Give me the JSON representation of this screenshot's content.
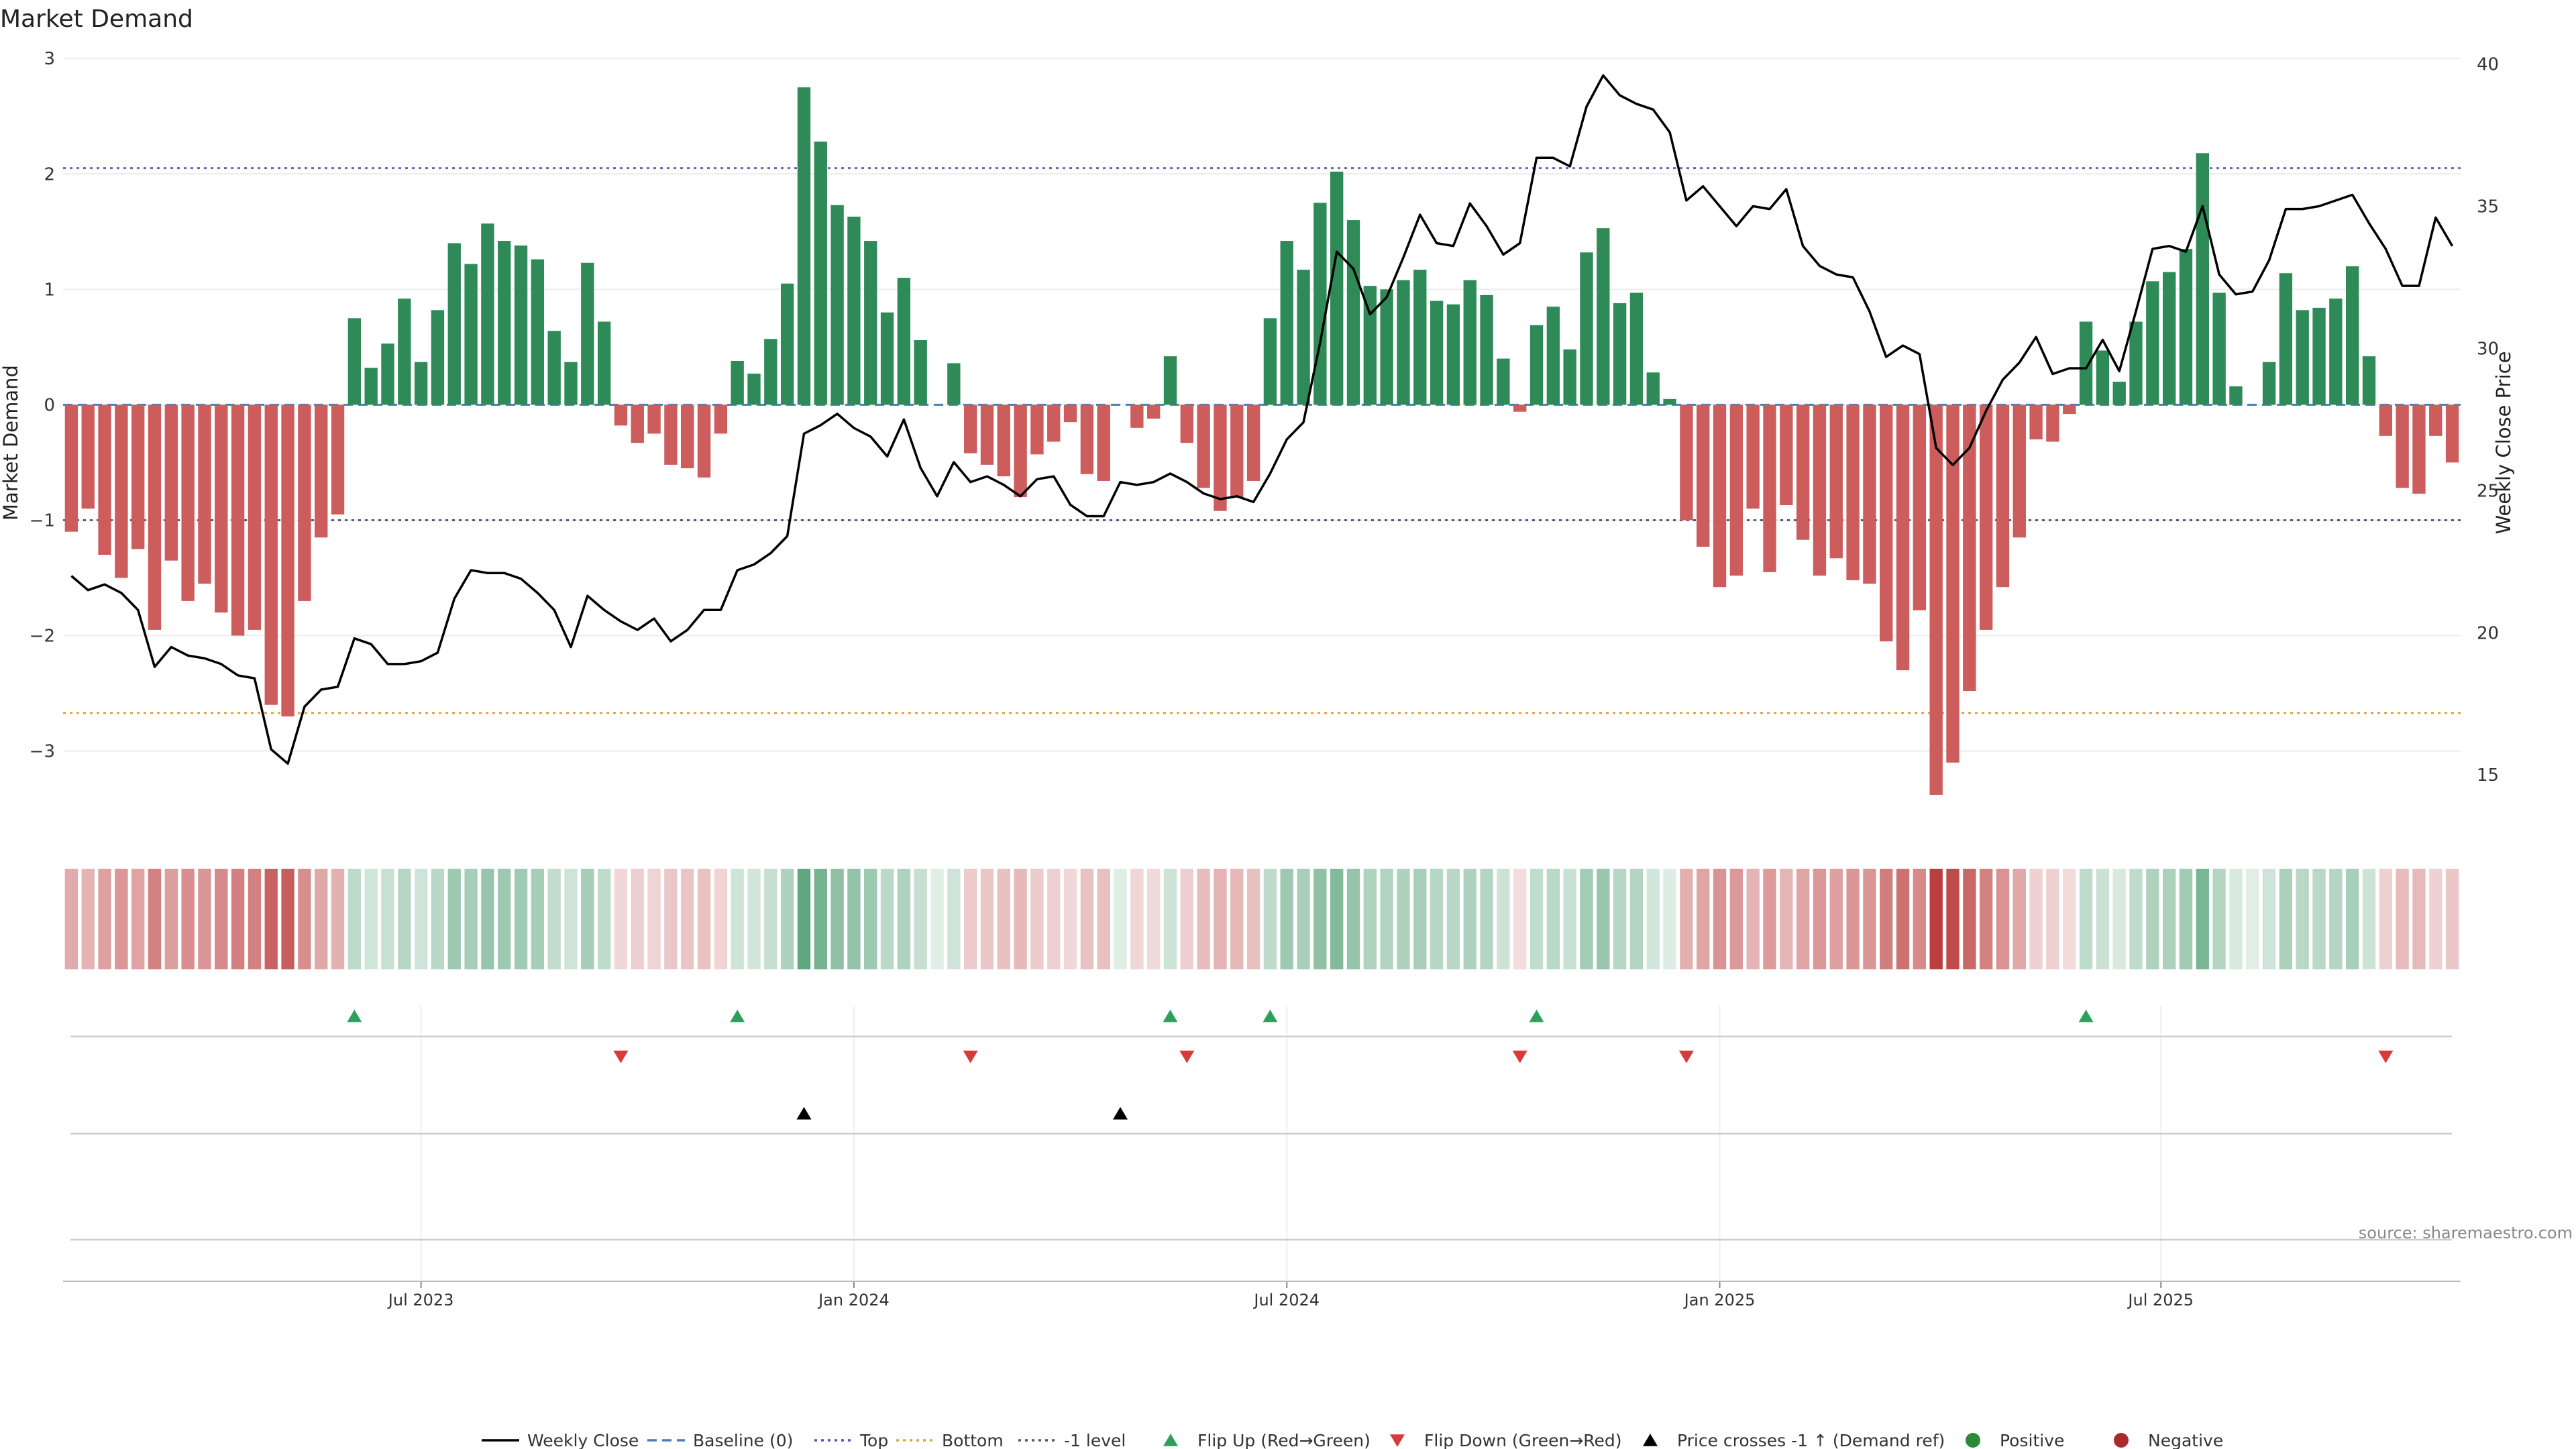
{
  "chart_data": {
    "type": "bar",
    "title": "Market Demand",
    "ylabel_left": "Market Demand",
    "ylabel_right": "Weekly Close Price",
    "source": "source: sharemaestro.com",
    "x_tick_labels": [
      "Jul 2023",
      "Jan 2024",
      "Jul 2024",
      "Jan 2025",
      "Jul 2025"
    ],
    "y_left_ticks": [
      "3",
      "2",
      "1",
      "0",
      "−1",
      "−2",
      "−3"
    ],
    "y_right_ticks": [
      "40",
      "35",
      "30",
      "25",
      "20",
      "15"
    ],
    "ylim_left": [
      -3.7,
      3.1
    ],
    "ylim_right": [
      13.0,
      40.6
    ],
    "reference_lines": {
      "top": 2.05,
      "bottom": -2.67,
      "minus_one": -1.0,
      "baseline": 0.0
    },
    "demand": [
      -1.1,
      -0.9,
      -1.3,
      -1.5,
      -1.25,
      -1.95,
      -1.35,
      -1.7,
      -1.55,
      -1.8,
      -2.0,
      -1.95,
      -2.6,
      -2.7,
      -1.7,
      -1.15,
      -0.95,
      0.75,
      0.32,
      0.53,
      0.92,
      0.37,
      0.82,
      1.4,
      1.22,
      1.57,
      1.42,
      1.38,
      1.26,
      0.64,
      0.37,
      1.23,
      0.72,
      -0.18,
      -0.33,
      -0.25,
      -0.52,
      -0.55,
      -0.63,
      -0.25,
      0.38,
      0.27,
      0.57,
      1.05,
      2.75,
      2.28,
      1.73,
      1.63,
      1.42,
      0.8,
      1.1,
      0.56,
      0.0,
      0.36,
      -0.42,
      -0.52,
      -0.62,
      -0.8,
      -0.43,
      -0.32,
      -0.15,
      -0.6,
      -0.66,
      0.0,
      -0.2,
      -0.12,
      0.42,
      -0.33,
      -0.72,
      -0.92,
      -0.8,
      -0.66,
      0.75,
      1.42,
      1.17,
      1.75,
      2.02,
      1.6,
      1.03,
      1.0,
      1.08,
      1.17,
      0.9,
      0.87,
      1.08,
      0.95,
      0.4,
      -0.06,
      0.69,
      0.85,
      0.48,
      1.32,
      1.53,
      0.88,
      0.97,
      0.28,
      0.05,
      -1.0,
      -1.23,
      -1.58,
      -1.48,
      -0.9,
      -1.45,
      -0.87,
      -1.17,
      -1.48,
      -1.33,
      -1.52,
      -1.55,
      -2.05,
      -2.3,
      -1.78,
      -3.38,
      -3.1,
      -2.48,
      -1.95,
      -1.58,
      -1.15,
      -0.3,
      -0.32,
      -0.08,
      0.72,
      0.47,
      0.2,
      0.72,
      1.07,
      1.15,
      1.35,
      2.18,
      0.97,
      0.16,
      0.0,
      0.37,
      1.14,
      0.82,
      0.84,
      0.92,
      1.2,
      0.42,
      -0.27,
      -0.72,
      -0.77,
      -0.27,
      -0.5
    ],
    "close": [
      22.0,
      21.5,
      21.7,
      21.4,
      20.8,
      18.8,
      19.5,
      19.2,
      19.1,
      18.9,
      18.5,
      18.4,
      15.9,
      15.4,
      17.4,
      18.0,
      18.1,
      19.8,
      19.6,
      18.9,
      18.9,
      19.0,
      19.3,
      21.2,
      22.2,
      22.1,
      22.1,
      21.9,
      21.4,
      20.8,
      19.5,
      21.3,
      20.8,
      20.4,
      20.1,
      20.5,
      19.7,
      20.1,
      20.8,
      20.8,
      22.2,
      22.4,
      22.8,
      23.4,
      27.0,
      27.3,
      27.7,
      27.2,
      26.9,
      26.2,
      27.5,
      25.8,
      24.8,
      26.0,
      25.3,
      25.5,
      25.2,
      24.8,
      25.4,
      25.5,
      24.5,
      24.1,
      24.1,
      25.3,
      25.2,
      25.3,
      25.6,
      25.3,
      24.9,
      24.7,
      24.8,
      24.6,
      25.6,
      26.8,
      27.4,
      30.2,
      33.4,
      32.8,
      31.2,
      31.8,
      33.2,
      34.7,
      33.7,
      33.6,
      35.1,
      34.3,
      33.3,
      33.7,
      36.7,
      36.7,
      36.4,
      38.5,
      39.6,
      38.9,
      38.6,
      38.4,
      37.6,
      35.2,
      35.7,
      35.0,
      34.3,
      35.0,
      34.9,
      35.6,
      33.6,
      32.9,
      32.6,
      32.5,
      31.3,
      29.7,
      30.1,
      29.8,
      26.5,
      25.9,
      26.5,
      27.8,
      28.9,
      29.5,
      30.4,
      29.1,
      29.3,
      29.3,
      30.3,
      29.2,
      31.3,
      33.5,
      33.6,
      33.4,
      35.0,
      32.6,
      31.9,
      32.0,
      33.1,
      34.9,
      34.9,
      35.0,
      35.2,
      35.4,
      34.4,
      33.5,
      32.2,
      32.2,
      34.6,
      33.6
    ],
    "flip_up_weeks": [
      17,
      40,
      66,
      72,
      88,
      121
    ],
    "flip_down_weeks": [
      33,
      54,
      67,
      87,
      97,
      139
    ],
    "price_cross_weeks": [
      44,
      63
    ],
    "legend": [
      {
        "key": "weekly_close",
        "label": "Weekly Close",
        "color": "#000000"
      },
      {
        "key": "baseline",
        "label": "Baseline (0)",
        "color": "#4a7fb5"
      },
      {
        "key": "top",
        "label": "Top",
        "color": "#5555aa"
      },
      {
        "key": "bottom",
        "label": "Bottom",
        "color": "#e0a040"
      },
      {
        "key": "minus_one",
        "label": "-1 level",
        "color": "#555577"
      },
      {
        "key": "flip_up",
        "label": "Flip Up (Red→Green)",
        "color": "#2e9e5b"
      },
      {
        "key": "flip_down",
        "label": "Flip Down (Green→Red)",
        "color": "#d63a3a"
      },
      {
        "key": "price_cross",
        "label": "Price crosses -1 ↑ (Demand ref)",
        "color": "#000000"
      },
      {
        "key": "positive",
        "label": "Positive",
        "color": "#2a8a3a"
      },
      {
        "key": "negative",
        "label": "Negative",
        "color": "#a82a2a"
      }
    ],
    "colors": {
      "positive_bar": "#2e8b57",
      "negative_bar": "#cd5c5c",
      "close_line": "#000000"
    }
  }
}
